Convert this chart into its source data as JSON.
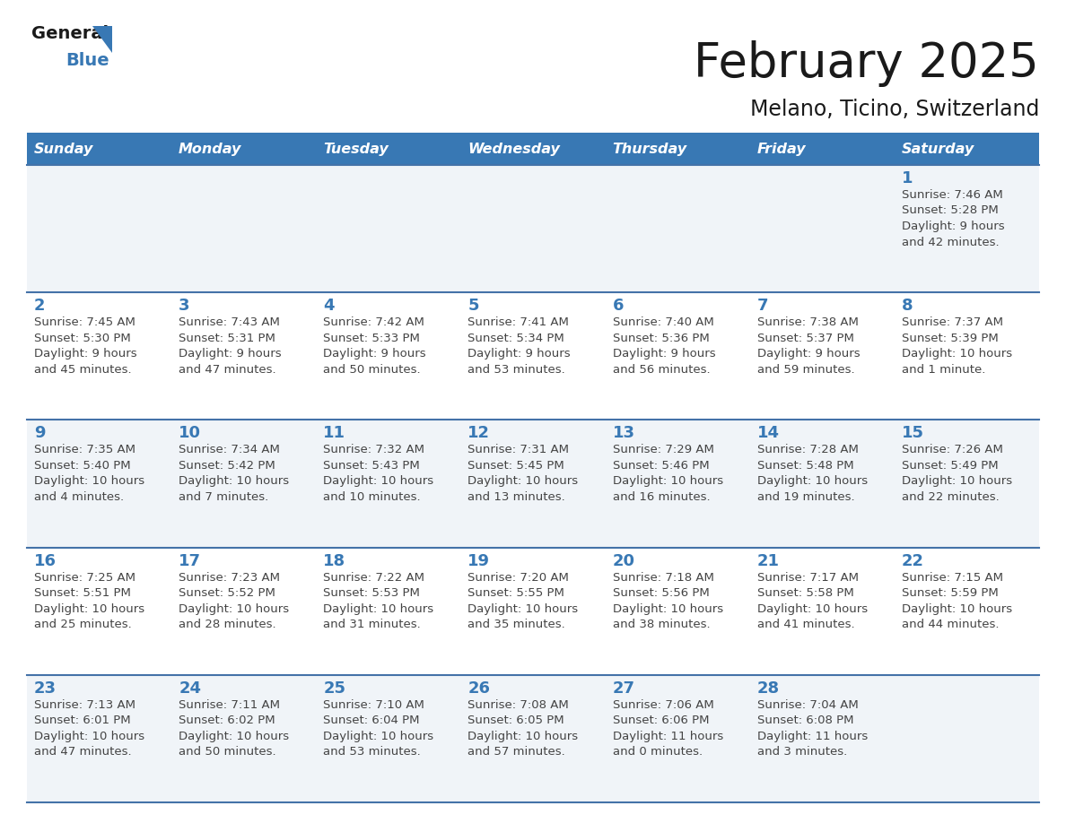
{
  "title": "February 2025",
  "subtitle": "Melano, Ticino, Switzerland",
  "header_bg_color": "#3878b4",
  "header_text_color": "#ffffff",
  "cell_bg_color": "#ffffff",
  "cell_bg_alt": "#f0f4f8",
  "day_number_color": "#3878b4",
  "info_text_color": "#444444",
  "line_color": "#4472a8",
  "days_of_week": [
    "Sunday",
    "Monday",
    "Tuesday",
    "Wednesday",
    "Thursday",
    "Friday",
    "Saturday"
  ],
  "weeks": [
    [
      {
        "day": null,
        "info": null
      },
      {
        "day": null,
        "info": null
      },
      {
        "day": null,
        "info": null
      },
      {
        "day": null,
        "info": null
      },
      {
        "day": null,
        "info": null
      },
      {
        "day": null,
        "info": null
      },
      {
        "day": "1",
        "info": "Sunrise: 7:46 AM\nSunset: 5:28 PM\nDaylight: 9 hours\nand 42 minutes."
      }
    ],
    [
      {
        "day": "2",
        "info": "Sunrise: 7:45 AM\nSunset: 5:30 PM\nDaylight: 9 hours\nand 45 minutes."
      },
      {
        "day": "3",
        "info": "Sunrise: 7:43 AM\nSunset: 5:31 PM\nDaylight: 9 hours\nand 47 minutes."
      },
      {
        "day": "4",
        "info": "Sunrise: 7:42 AM\nSunset: 5:33 PM\nDaylight: 9 hours\nand 50 minutes."
      },
      {
        "day": "5",
        "info": "Sunrise: 7:41 AM\nSunset: 5:34 PM\nDaylight: 9 hours\nand 53 minutes."
      },
      {
        "day": "6",
        "info": "Sunrise: 7:40 AM\nSunset: 5:36 PM\nDaylight: 9 hours\nand 56 minutes."
      },
      {
        "day": "7",
        "info": "Sunrise: 7:38 AM\nSunset: 5:37 PM\nDaylight: 9 hours\nand 59 minutes."
      },
      {
        "day": "8",
        "info": "Sunrise: 7:37 AM\nSunset: 5:39 PM\nDaylight: 10 hours\nand 1 minute."
      }
    ],
    [
      {
        "day": "9",
        "info": "Sunrise: 7:35 AM\nSunset: 5:40 PM\nDaylight: 10 hours\nand 4 minutes."
      },
      {
        "day": "10",
        "info": "Sunrise: 7:34 AM\nSunset: 5:42 PM\nDaylight: 10 hours\nand 7 minutes."
      },
      {
        "day": "11",
        "info": "Sunrise: 7:32 AM\nSunset: 5:43 PM\nDaylight: 10 hours\nand 10 minutes."
      },
      {
        "day": "12",
        "info": "Sunrise: 7:31 AM\nSunset: 5:45 PM\nDaylight: 10 hours\nand 13 minutes."
      },
      {
        "day": "13",
        "info": "Sunrise: 7:29 AM\nSunset: 5:46 PM\nDaylight: 10 hours\nand 16 minutes."
      },
      {
        "day": "14",
        "info": "Sunrise: 7:28 AM\nSunset: 5:48 PM\nDaylight: 10 hours\nand 19 minutes."
      },
      {
        "day": "15",
        "info": "Sunrise: 7:26 AM\nSunset: 5:49 PM\nDaylight: 10 hours\nand 22 minutes."
      }
    ],
    [
      {
        "day": "16",
        "info": "Sunrise: 7:25 AM\nSunset: 5:51 PM\nDaylight: 10 hours\nand 25 minutes."
      },
      {
        "day": "17",
        "info": "Sunrise: 7:23 AM\nSunset: 5:52 PM\nDaylight: 10 hours\nand 28 minutes."
      },
      {
        "day": "18",
        "info": "Sunrise: 7:22 AM\nSunset: 5:53 PM\nDaylight: 10 hours\nand 31 minutes."
      },
      {
        "day": "19",
        "info": "Sunrise: 7:20 AM\nSunset: 5:55 PM\nDaylight: 10 hours\nand 35 minutes."
      },
      {
        "day": "20",
        "info": "Sunrise: 7:18 AM\nSunset: 5:56 PM\nDaylight: 10 hours\nand 38 minutes."
      },
      {
        "day": "21",
        "info": "Sunrise: 7:17 AM\nSunset: 5:58 PM\nDaylight: 10 hours\nand 41 minutes."
      },
      {
        "day": "22",
        "info": "Sunrise: 7:15 AM\nSunset: 5:59 PM\nDaylight: 10 hours\nand 44 minutes."
      }
    ],
    [
      {
        "day": "23",
        "info": "Sunrise: 7:13 AM\nSunset: 6:01 PM\nDaylight: 10 hours\nand 47 minutes."
      },
      {
        "day": "24",
        "info": "Sunrise: 7:11 AM\nSunset: 6:02 PM\nDaylight: 10 hours\nand 50 minutes."
      },
      {
        "day": "25",
        "info": "Sunrise: 7:10 AM\nSunset: 6:04 PM\nDaylight: 10 hours\nand 53 minutes."
      },
      {
        "day": "26",
        "info": "Sunrise: 7:08 AM\nSunset: 6:05 PM\nDaylight: 10 hours\nand 57 minutes."
      },
      {
        "day": "27",
        "info": "Sunrise: 7:06 AM\nSunset: 6:06 PM\nDaylight: 11 hours\nand 0 minutes."
      },
      {
        "day": "28",
        "info": "Sunrise: 7:04 AM\nSunset: 6:08 PM\nDaylight: 11 hours\nand 3 minutes."
      },
      {
        "day": null,
        "info": null
      }
    ]
  ]
}
